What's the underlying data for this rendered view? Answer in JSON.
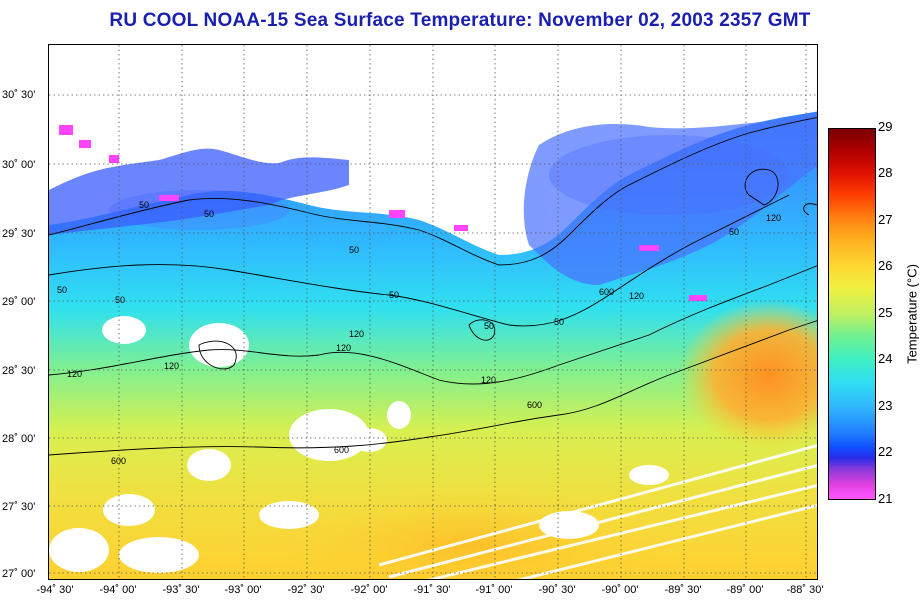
{
  "title": "RU COOL  NOAA-15  Sea Surface Temperature:  November 02, 2003 2357 GMT",
  "lat_labels": [
    "30˚ 30'",
    "30˚ 00'",
    "29˚ 30'",
    "29˚ 00'",
    "28˚ 30'",
    "28˚ 00'",
    "27˚ 30'",
    "27˚ 00'"
  ],
  "lon_labels": [
    "-94˚ 30'",
    "-94˚ 00'",
    "-93˚ 30'",
    "-93˚ 00'",
    "-92˚ 30'",
    "-92˚ 00'",
    "-91˚ 30'",
    "-91˚ 00'",
    "-90˚ 30'",
    "-90˚ 00'",
    "-89˚ 30'",
    "-89˚ 00'",
    "-88˚ 30'"
  ],
  "colorbar": {
    "label": "Temperature (°C)",
    "ticks": [
      "29",
      "28",
      "27",
      "26",
      "25",
      "24",
      "23",
      "22",
      "21"
    ],
    "min": 21,
    "max": 29
  },
  "contour_labels": [
    "50",
    "50",
    "50",
    "50",
    "50",
    "50",
    "50",
    "50",
    "120",
    "120",
    "120",
    "120",
    "120",
    "120",
    "600",
    "600",
    "600",
    "600",
    "120",
    "50"
  ],
  "colors": {
    "title": "#1a1fb0",
    "land": "#ffffff",
    "grid": "#555555",
    "contour": "#000000"
  }
}
